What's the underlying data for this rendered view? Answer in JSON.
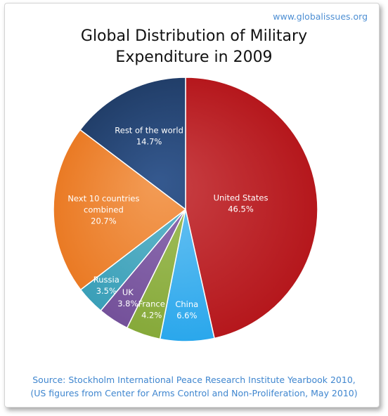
{
  "site": "www.globalissues.org",
  "chart_data": {
    "type": "pie",
    "title_line1": "Global Distribution of Military",
    "title_line2": "Expenditure in 2009",
    "slices": [
      {
        "name": "United States",
        "value": 46.5,
        "label": "46.5%",
        "color": "#b5171c",
        "color_light": "#c94246"
      },
      {
        "name": "China",
        "value": 6.6,
        "label": "6.6%",
        "color": "#2aa7ec",
        "color_light": "#6fc4f2"
      },
      {
        "name": "France",
        "value": 4.2,
        "label": "4.2%",
        "color": "#86a93a",
        "color_light": "#a3c05e"
      },
      {
        "name": "UK",
        "value": 3.8,
        "label": "3.8%",
        "color": "#74519a",
        "color_light": "#8f6fb2"
      },
      {
        "name": "Russia",
        "value": 3.5,
        "label": "3.5%",
        "color": "#3a9fb8",
        "color_light": "#64b7cb"
      },
      {
        "name": "Next 10 countries combined",
        "name_line1": "Next 10 countries",
        "name_line2": "combined",
        "value": 20.7,
        "label": "20.7%",
        "color": "#ea7a24",
        "color_light": "#f39c56"
      },
      {
        "name": "Rest of the world",
        "value": 14.7,
        "label": "14.7%",
        "color": "#213e69",
        "color_light": "#35598f"
      }
    ]
  },
  "source_line1": "Source: Stockholm International Peace Research Institute Yearbook 2010,",
  "source_line2": "(US figures from Center for Arms Control and Non-Proliferation, May 2010)"
}
